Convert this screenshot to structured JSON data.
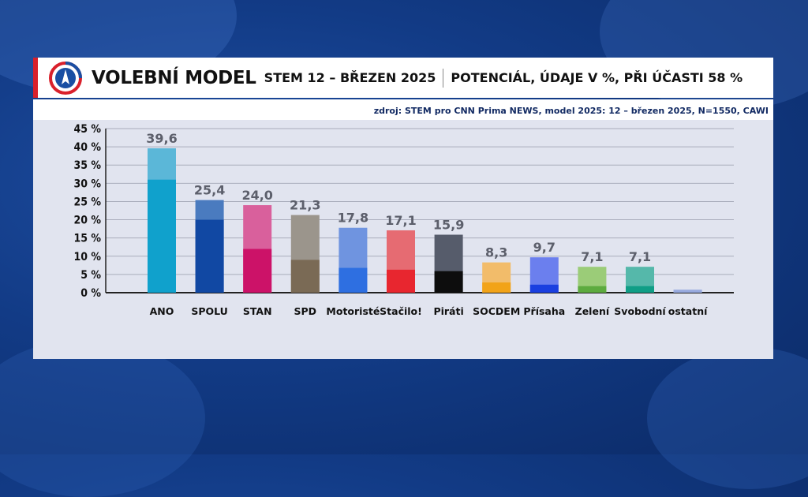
{
  "header": {
    "title": "VOLEBNÍ MODEL",
    "subtitle": "STEM 12 – BŘEZEN 2025",
    "description": "POTENCIÁL, ÚDAJE V %, PŘI ÚČASTI 58 %"
  },
  "source": "zdroj: STEM pro CNN Prima NEWS, model 2025: 12 – březen 2025, N=1550, CAWI",
  "colors": {
    "accent": "#d9202b",
    "panel": "#e1e4ef"
  },
  "chart_data": {
    "type": "bar",
    "title": "VOLEBNÍ MODEL",
    "xlabel": "",
    "ylabel": "",
    "ylim": [
      0,
      45
    ],
    "yticks": [
      "0 %",
      "5 %",
      "10 %",
      "15 %",
      "20 %",
      "25 %",
      "30 %",
      "35 %",
      "40 %",
      "45 %"
    ],
    "grid": true,
    "categories": [
      "ANO",
      "SPOLU",
      "STAN",
      "SPD",
      "Motoristé",
      "Stačilo!",
      "Piráti",
      "SOCDEM",
      "Přísaha",
      "Zelení",
      "Svobodní",
      "ostatní"
    ],
    "value_labels": [
      "39,6",
      "25,4",
      "24,0",
      "21,3",
      "17,8",
      "17,1",
      "15,9",
      "8,3",
      "9,7",
      "7,1",
      "7,1",
      ""
    ],
    "values": [
      39.6,
      25.4,
      24.0,
      21.3,
      17.8,
      17.1,
      15.9,
      8.3,
      9.7,
      7.1,
      7.1,
      0.8
    ],
    "inner_values": [
      31.0,
      20.0,
      12.0,
      9.0,
      6.8,
      6.3,
      5.9,
      2.8,
      2.2,
      1.8,
      1.8,
      0.8
    ],
    "bar_colors": [
      "#5bb7d8",
      "#4a7bbf",
      "#d9609c",
      "#9b958c",
      "#6f94e0",
      "#e66b72",
      "#565c6b",
      "#f2bc6a",
      "#6b7fee",
      "#9bcc78",
      "#55b8aa",
      "#aab9e2"
    ],
    "inner_colors": [
      "#10a1cc",
      "#1148a3",
      "#cc1268",
      "#7a6a55",
      "#2e6fe1",
      "#e8262f",
      "#0d0d0d",
      "#f2a318",
      "#1a3fe0",
      "#5dab3f",
      "#109e86",
      "#97a9de"
    ]
  }
}
